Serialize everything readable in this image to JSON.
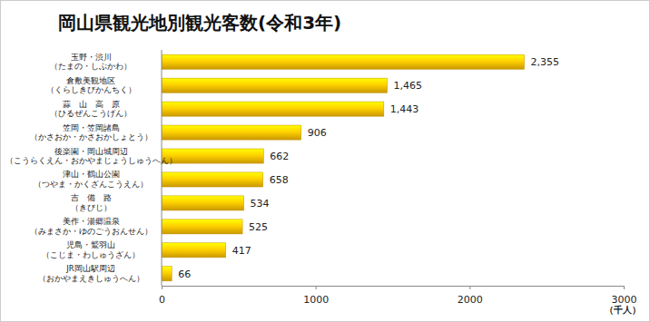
{
  "chart_data": {
    "type": "bar",
    "title": "岡山県観光地別観光客数(令和3年)",
    "categories": [
      "玉野・渋川\n（たまの・しぶかわ）",
      "倉敷美観地区\n（くらしきびかんちく）",
      "蒜　山　高　原\n（ひるぜんこうげん）",
      "笠岡・笠岡諸島\n（かさおか・かさおかしょとう）",
      "後楽園・岡山城周辺\n（こうらくえん・おかやまじょうしゅうへん）",
      "津山・鶴山公園\n（つやま・かくざんこうえん）",
      "吉　備　路\n（きびじ）",
      "美作・湯郷温泉\n（みまさか・ゆのごうおんせん）",
      "児島・鷲羽山\n（こじま・わしゅうざん）",
      "JR岡山駅周辺\n（おかやまえきしゅうへん）"
    ],
    "values": [
      2355,
      1465,
      1443,
      906,
      662,
      658,
      534,
      525,
      417,
      66
    ],
    "value_labels": [
      "2,355",
      "1,465",
      "1,443",
      "906",
      "662",
      "658",
      "534",
      "525",
      "417",
      "66"
    ],
    "color": "#f2b600",
    "orientation": "horizontal",
    "data_labels": true,
    "grid": false,
    "x_label": "（千人）",
    "xlim": [
      0,
      3000
    ],
    "xticks": [
      0,
      1000,
      2000,
      3000
    ]
  }
}
